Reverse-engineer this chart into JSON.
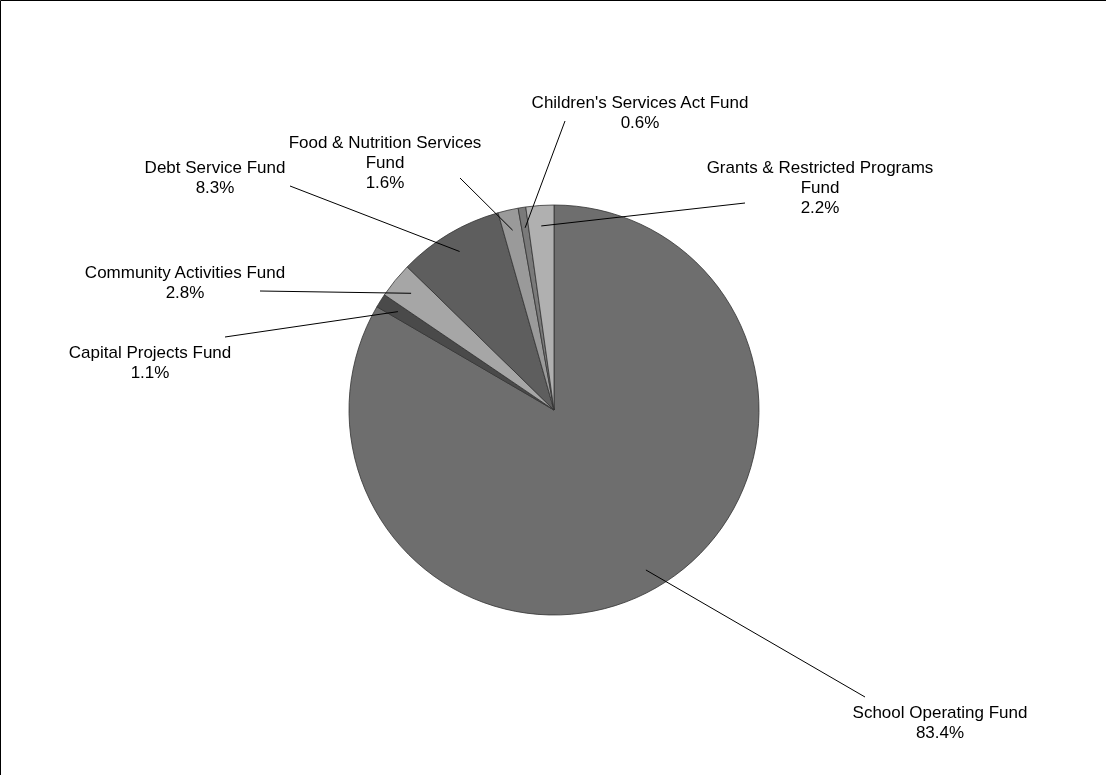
{
  "chart_data": {
    "type": "pie",
    "categories": [
      "School Operating Fund",
      "Capital Projects Fund",
      "Community Activities Fund",
      "Debt Service Fund",
      "Food & Nutrition Services Fund",
      "Children's Services Act Fund",
      "Grants & Restricted Programs Fund"
    ],
    "values": [
      83.4,
      1.1,
      2.8,
      8.3,
      1.6,
      0.6,
      2.2
    ],
    "value_labels": [
      "83.4%",
      "1.1%",
      "2.8%",
      "8.3%",
      "1.6%",
      "0.6%",
      "2.2%"
    ],
    "colors": [
      "#6e6e6e",
      "#4a4a4a",
      "#a6a6a6",
      "#5e5e5e",
      "#9a9a9a",
      "#7a7a7a",
      "#b0b0b0"
    ]
  }
}
